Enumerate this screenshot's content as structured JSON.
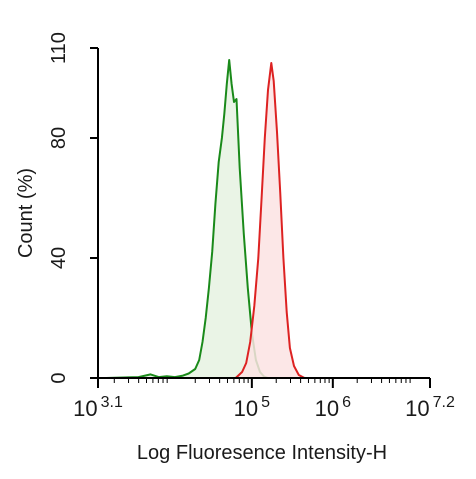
{
  "chart_data": {
    "type": "area",
    "title": "",
    "xlabel": "Log Fluoresence Intensity-H",
    "ylabel": "Count  (%)",
    "x_scale": "log10",
    "xlim_log10": [
      3.1,
      7.2
    ],
    "ylim": [
      0,
      110
    ],
    "grid": false,
    "legend": "none",
    "x_ticks": [
      {
        "base": "10",
        "exp": "3.1",
        "log10": 3.1
      },
      {
        "base": "10",
        "exp": "5",
        "log10": 5
      },
      {
        "base": "10",
        "exp": "6",
        "log10": 6
      },
      {
        "base": "10",
        "exp": "7.2",
        "log10": 7.2
      }
    ],
    "y_ticks": [
      {
        "label": "0",
        "value": 0
      },
      {
        "label": "40",
        "value": 40
      },
      {
        "label": "80",
        "value": 80
      },
      {
        "label": "110",
        "value": 110
      }
    ],
    "series": [
      {
        "color": "#1a8a1a",
        "fill": "#e6f2e2",
        "points": [
          [
            3.2,
            0
          ],
          [
            3.6,
            0.3
          ],
          [
            3.75,
            1.2
          ],
          [
            3.85,
            0.3
          ],
          [
            3.95,
            0.6
          ],
          [
            4.05,
            0.3
          ],
          [
            4.15,
            0.8
          ],
          [
            4.22,
            1.5
          ],
          [
            4.3,
            3
          ],
          [
            4.35,
            6
          ],
          [
            4.39,
            12
          ],
          [
            4.43,
            20
          ],
          [
            4.47,
            30
          ],
          [
            4.51,
            42
          ],
          [
            4.55,
            58
          ],
          [
            4.59,
            72
          ],
          [
            4.63,
            80
          ],
          [
            4.66,
            88
          ],
          [
            4.69,
            98
          ],
          [
            4.72,
            106
          ],
          [
            4.75,
            98
          ],
          [
            4.78,
            92
          ],
          [
            4.81,
            93
          ],
          [
            4.85,
            70
          ],
          [
            4.9,
            48
          ],
          [
            4.95,
            30
          ],
          [
            5.0,
            15
          ],
          [
            5.05,
            6
          ],
          [
            5.1,
            2
          ],
          [
            5.15,
            0.5
          ],
          [
            5.2,
            0
          ]
        ]
      },
      {
        "color": "#dd2222",
        "fill": "#fbe3e3",
        "points": [
          [
            4.8,
            0
          ],
          [
            4.88,
            2
          ],
          [
            4.93,
            5
          ],
          [
            4.98,
            12
          ],
          [
            5.03,
            24
          ],
          [
            5.08,
            40
          ],
          [
            5.12,
            60
          ],
          [
            5.16,
            80
          ],
          [
            5.2,
            96
          ],
          [
            5.24,
            105
          ],
          [
            5.27,
            99
          ],
          [
            5.31,
            82
          ],
          [
            5.35,
            62
          ],
          [
            5.39,
            40
          ],
          [
            5.43,
            22
          ],
          [
            5.47,
            10
          ],
          [
            5.52,
            4
          ],
          [
            5.58,
            1
          ],
          [
            5.65,
            0
          ]
        ]
      }
    ]
  }
}
